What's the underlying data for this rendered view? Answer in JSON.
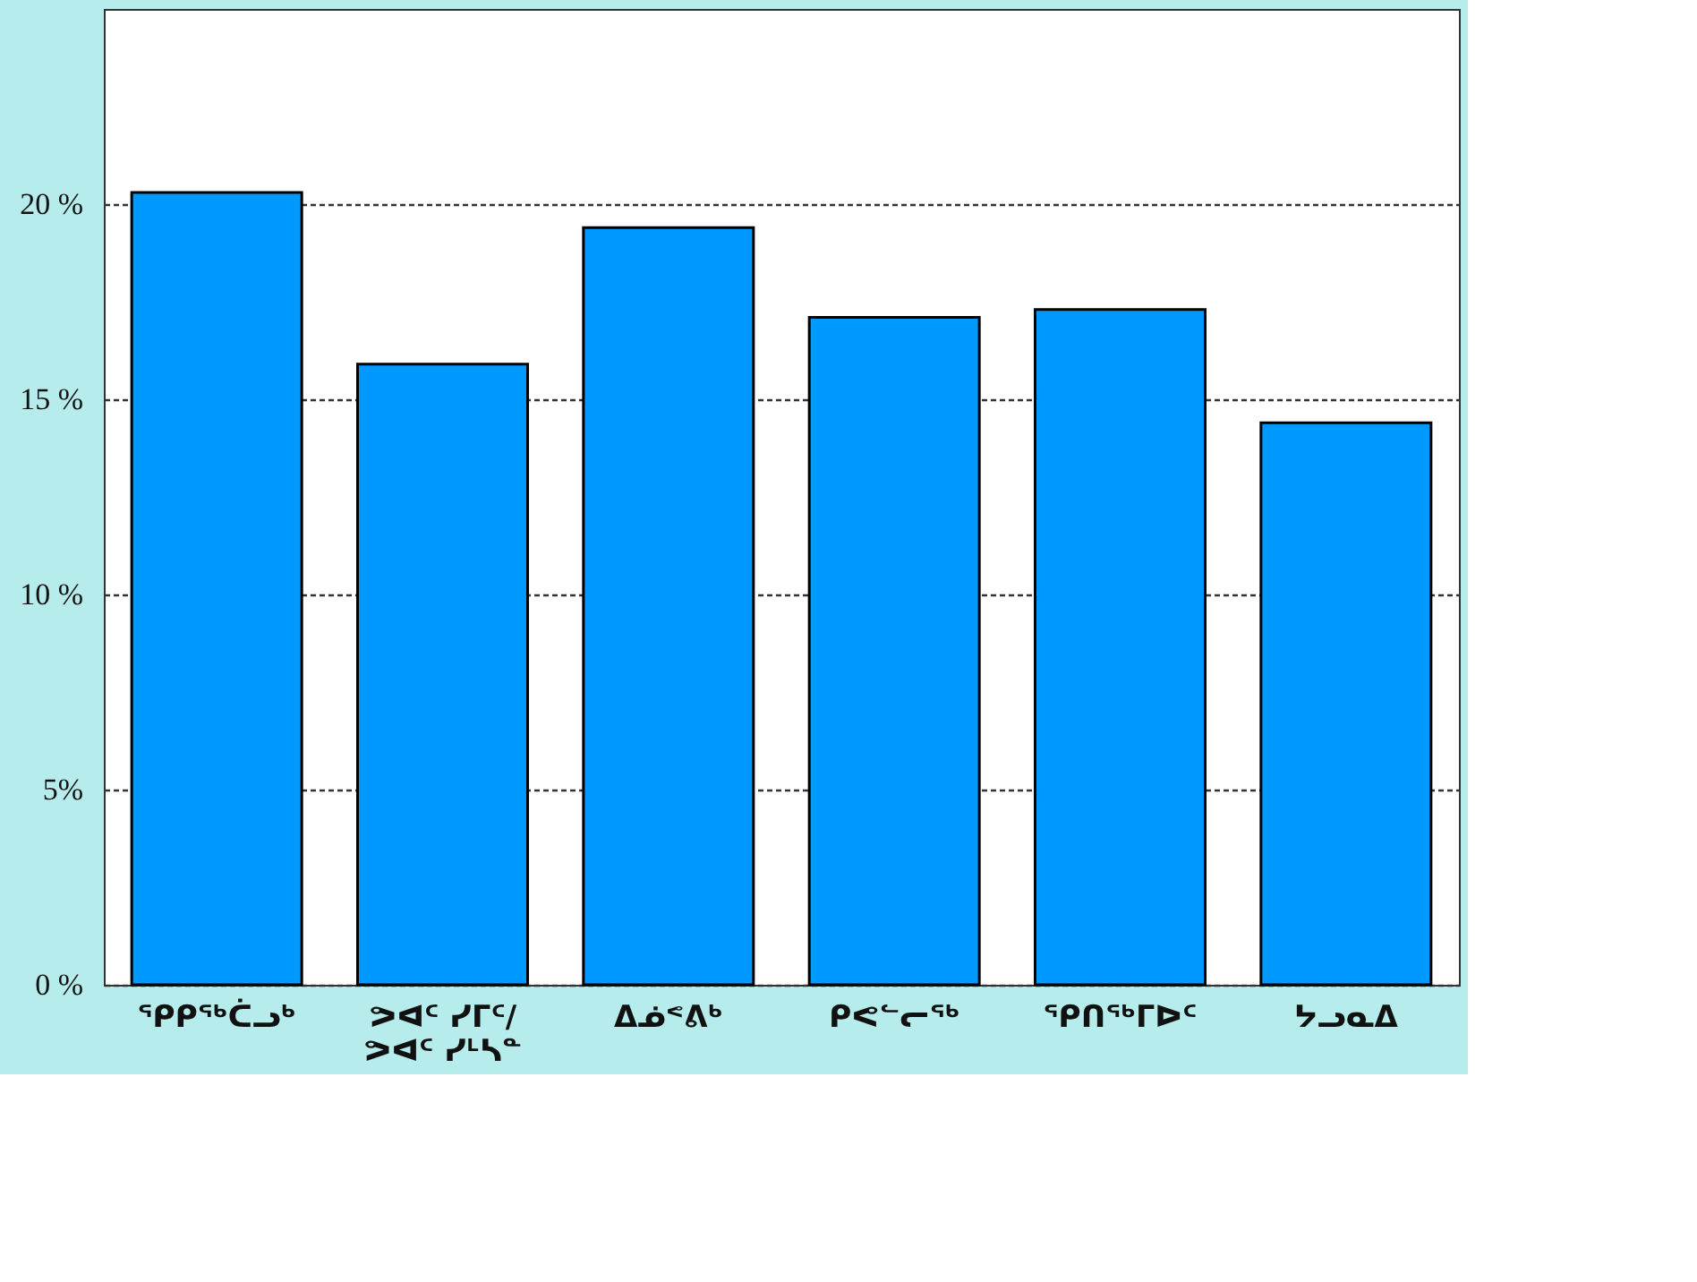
{
  "chart_data": {
    "type": "bar",
    "categories": [
      "ᕿᑭᖅᑖᓗᒃ",
      "ᕗᐊᑦ ᓯᒥᑦ/\nᕗᐊᑦ ᓯᒻᓴᓐ",
      "ᐃᓅᕝᕕᒃ",
      "ᑭᕙᓪᓕᖅ",
      "ᕿᑎᖅᒥᐅᑦ",
      "ᔭᓗᓇᐃ"
    ],
    "values": [
      20.3,
      15.9,
      19.4,
      17.1,
      17.3,
      14.4
    ],
    "color": "#0099ff",
    "ylim": [
      0,
      25
    ],
    "yticks": [
      {
        "value": 0,
        "label": "0 %"
      },
      {
        "value": 5,
        "label": "5%"
      },
      {
        "value": 10,
        "label": "10 %"
      },
      {
        "value": 15,
        "label": "15 %"
      },
      {
        "value": 20,
        "label": "20 %"
      }
    ],
    "grid": "y"
  }
}
